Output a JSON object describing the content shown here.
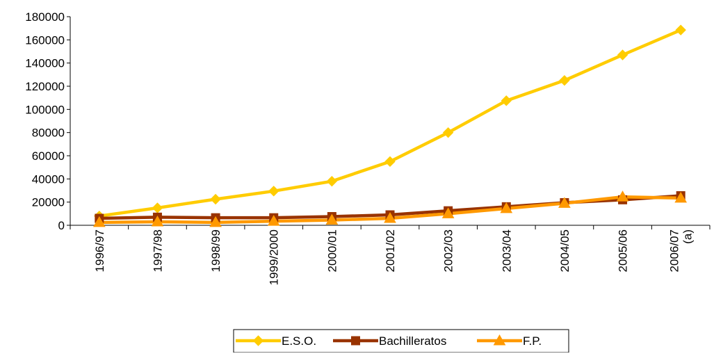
{
  "chart_data": {
    "type": "line",
    "title": "",
    "xlabel": "",
    "ylabel": "",
    "categories": [
      "1996/97",
      "1997/98",
      "1998/99",
      "1999/2000",
      "2000/01",
      "2001/02",
      "2002/03",
      "2003/04",
      "2004/05",
      "2005/06",
      "2006/07 (a)"
    ],
    "yticks": [
      "0",
      "20000",
      "40000",
      "60000",
      "80000",
      "100000",
      "120000",
      "140000",
      "160000",
      "180000"
    ],
    "ylim": [
      0,
      180000
    ],
    "grid": false,
    "legend_position": "bottom",
    "series": [
      {
        "name": "E.S.O.",
        "marker": "diamond",
        "color": "#FFCC00",
        "values": [
          8000,
          15000,
          22500,
          29500,
          38000,
          55000,
          80000,
          107500,
          125000,
          147000,
          168500
        ]
      },
      {
        "name": "Bachilleratos",
        "marker": "square",
        "color": "#993300",
        "values": [
          6000,
          7000,
          6500,
          6500,
          7500,
          9000,
          12500,
          16000,
          19500,
          22000,
          25500
        ]
      },
      {
        "name": "F.P.",
        "marker": "triangle",
        "color": "#FF9900",
        "values": [
          2500,
          3000,
          2500,
          3500,
          4500,
          6000,
          10000,
          14500,
          19000,
          24500,
          23500
        ]
      }
    ]
  }
}
